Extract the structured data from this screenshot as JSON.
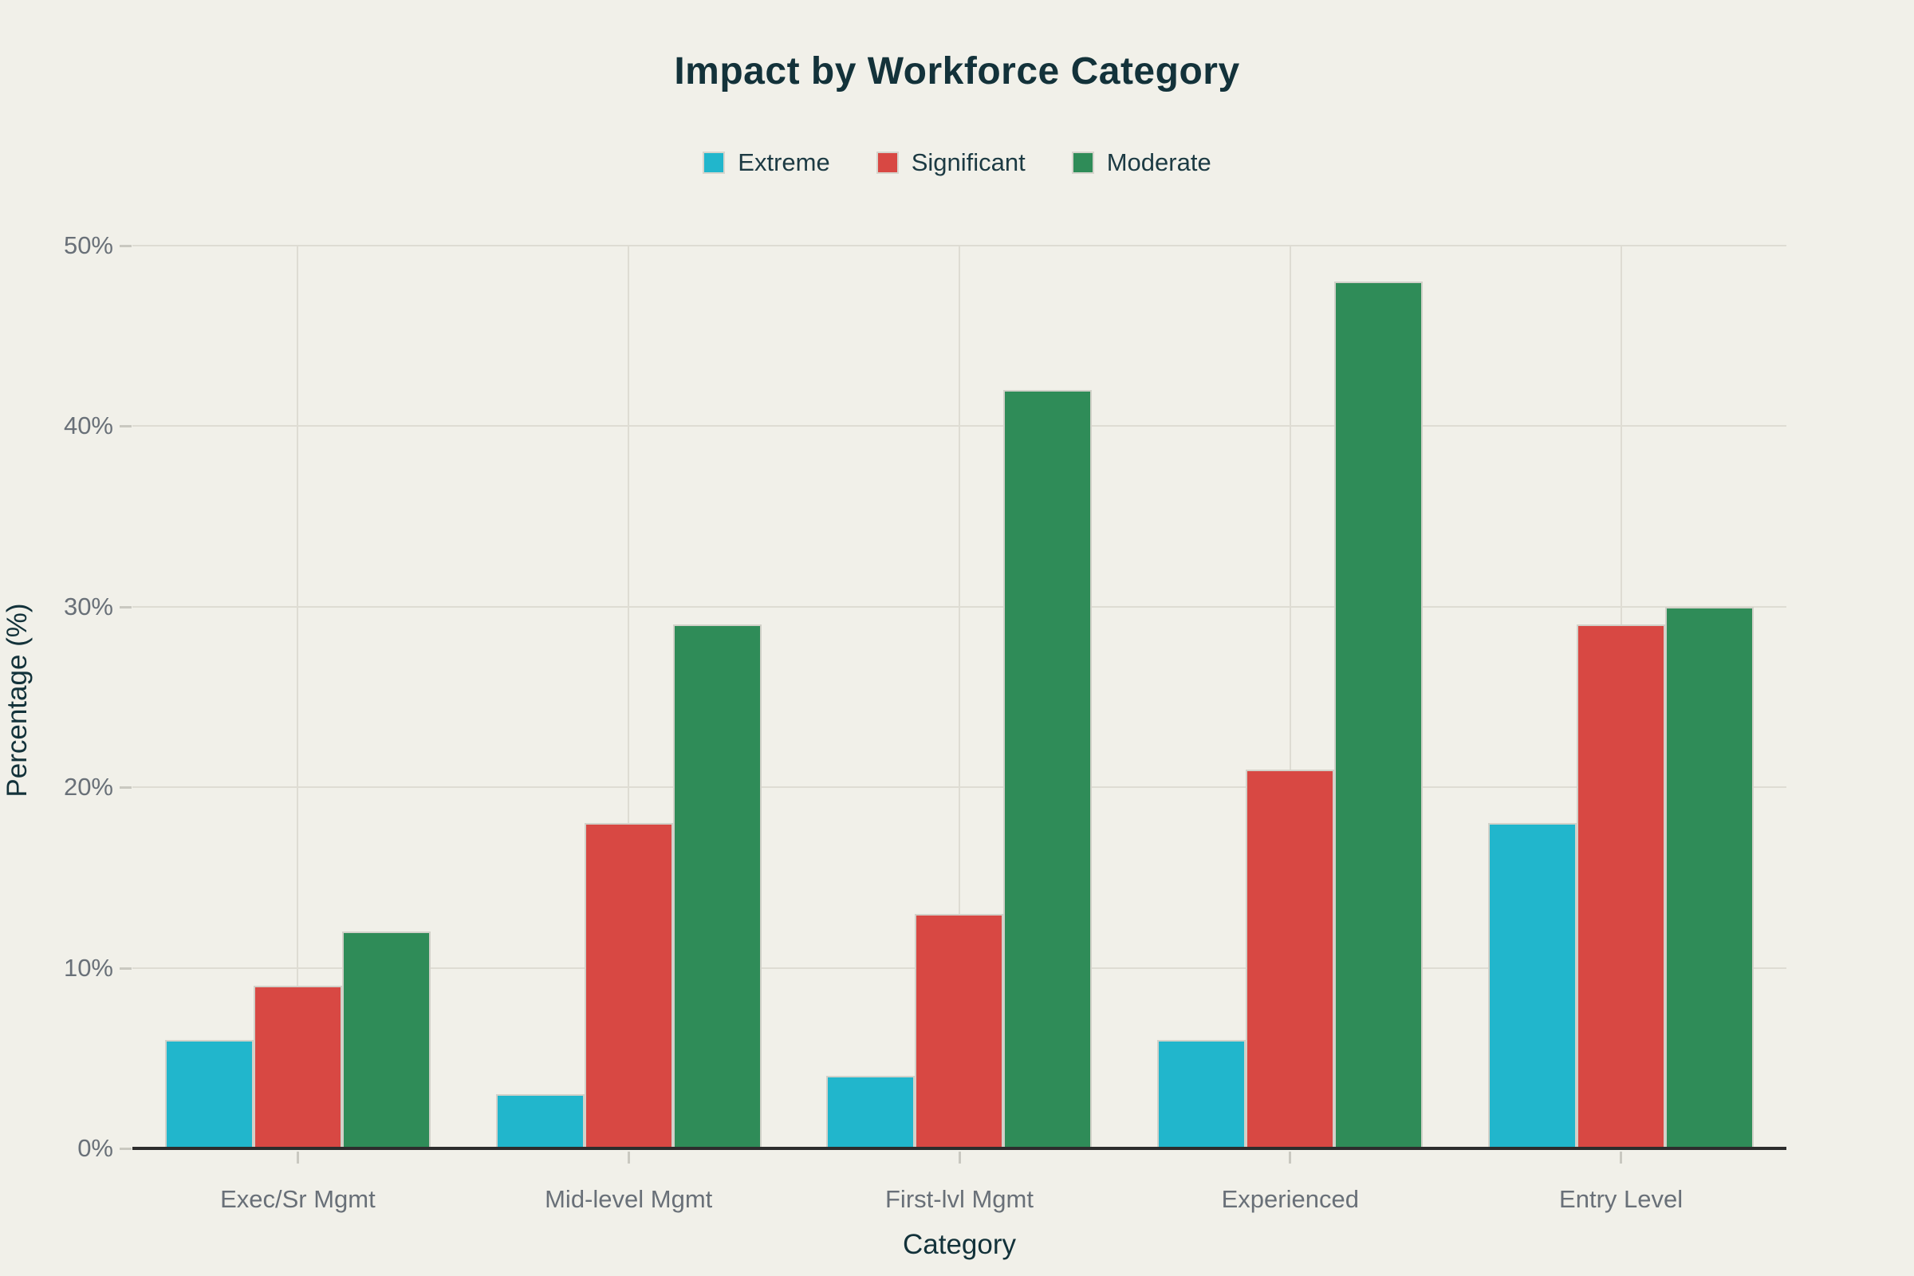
{
  "title": "Impact by Workforce Category",
  "chart_data": {
    "type": "bar",
    "title": "Impact by Workforce Category",
    "categories": [
      "Exec/Sr Mgmt",
      "Mid-level Mgmt",
      "First-lvl Mgmt",
      "Experienced",
      "Entry Level"
    ],
    "series": [
      {
        "name": "Extreme",
        "color": "#21b6cc",
        "values": [
          6,
          3,
          4,
          6,
          18
        ]
      },
      {
        "name": "Significant",
        "color": "#d84843",
        "values": [
          9,
          18,
          13,
          21,
          29
        ]
      },
      {
        "name": "Moderate",
        "color": "#2f8c58",
        "values": [
          12,
          29,
          42,
          48,
          30
        ]
      }
    ],
    "xlabel": "Category",
    "ylabel": "Percentage (%)",
    "ylim": [
      0,
      50
    ],
    "y_ticks": [
      "0%",
      "10%",
      "20%",
      "30%",
      "40%",
      "50%"
    ],
    "grid": true,
    "legend_position": "top"
  },
  "colors": {
    "background": "#f1f0e9",
    "text_dark": "#13323a",
    "tick_text": "#697078",
    "gridline": "#dedcd3",
    "axis_line": "#2d2d2d",
    "bar_edge": "#d2d1c9"
  }
}
